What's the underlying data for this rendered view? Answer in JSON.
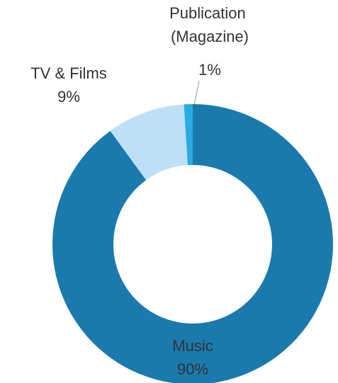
{
  "chart_data": {
    "type": "donut",
    "categories": [
      "Music",
      "TV & Films",
      "Publication (Magazine)"
    ],
    "values": [
      90,
      9,
      1
    ],
    "value_labels": [
      "90%",
      "9%",
      "1%"
    ],
    "colors": [
      "#1a7aad",
      "#bde0f6",
      "#29abe2"
    ]
  }
}
